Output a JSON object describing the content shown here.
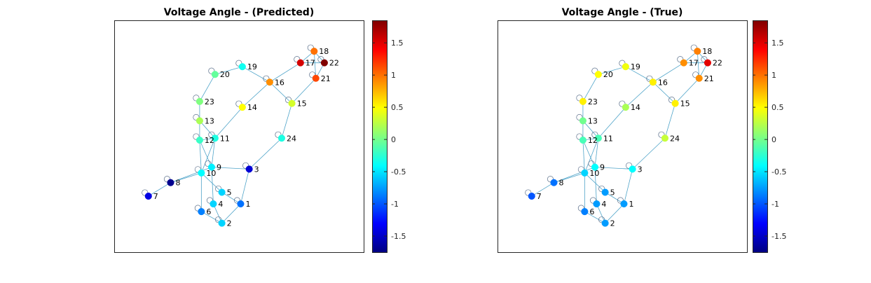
{
  "chart_data": {
    "type": "scatter",
    "graph": {
      "nodes": [
        {
          "id": "1",
          "x": 1.8,
          "y": 0.85
        },
        {
          "id": "2",
          "x": 1.25,
          "y": 0.35
        },
        {
          "id": "3",
          "x": 2.05,
          "y": 1.75
        },
        {
          "id": "4",
          "x": 1.0,
          "y": 0.85
        },
        {
          "id": "5",
          "x": 1.25,
          "y": 1.15
        },
        {
          "id": "6",
          "x": 0.65,
          "y": 0.65
        },
        {
          "id": "7",
          "x": -0.9,
          "y": 1.05
        },
        {
          "id": "8",
          "x": -0.25,
          "y": 1.4
        },
        {
          "id": "9",
          "x": 0.95,
          "y": 1.8
        },
        {
          "id": "10",
          "x": 0.65,
          "y": 1.65
        },
        {
          "id": "11",
          "x": 1.05,
          "y": 2.55
        },
        {
          "id": "12",
          "x": 0.6,
          "y": 2.5
        },
        {
          "id": "13",
          "x": 0.6,
          "y": 3.0
        },
        {
          "id": "14",
          "x": 1.85,
          "y": 3.35
        },
        {
          "id": "15",
          "x": 3.3,
          "y": 3.45
        },
        {
          "id": "16",
          "x": 2.65,
          "y": 4.0
        },
        {
          "id": "17",
          "x": 3.55,
          "y": 4.5
        },
        {
          "id": "18",
          "x": 3.95,
          "y": 4.8
        },
        {
          "id": "19",
          "x": 1.85,
          "y": 4.4
        },
        {
          "id": "20",
          "x": 1.05,
          "y": 4.2
        },
        {
          "id": "21",
          "x": 4.0,
          "y": 4.1
        },
        {
          "id": "22",
          "x": 4.25,
          "y": 4.5
        },
        {
          "id": "23",
          "x": 0.6,
          "y": 3.5
        },
        {
          "id": "24",
          "x": 3.0,
          "y": 2.55
        }
      ],
      "edges": [
        [
          "1",
          "2"
        ],
        [
          "1",
          "3"
        ],
        [
          "1",
          "5"
        ],
        [
          "2",
          "4"
        ],
        [
          "2",
          "6"
        ],
        [
          "4",
          "9"
        ],
        [
          "5",
          "10"
        ],
        [
          "3",
          "9"
        ],
        [
          "6",
          "10"
        ],
        [
          "7",
          "8"
        ],
        [
          "8",
          "9"
        ],
        [
          "8",
          "10"
        ],
        [
          "9",
          "11"
        ],
        [
          "9",
          "12"
        ],
        [
          "10",
          "11"
        ],
        [
          "10",
          "12"
        ],
        [
          "11",
          "13"
        ],
        [
          "11",
          "14"
        ],
        [
          "12",
          "13"
        ],
        [
          "13",
          "23"
        ],
        [
          "14",
          "16"
        ],
        [
          "15",
          "16"
        ],
        [
          "15",
          "21"
        ],
        [
          "15",
          "24"
        ],
        [
          "16",
          "17"
        ],
        [
          "16",
          "19"
        ],
        [
          "17",
          "18"
        ],
        [
          "17",
          "22"
        ],
        [
          "18",
          "21"
        ],
        [
          "18",
          "22"
        ],
        [
          "19",
          "20"
        ],
        [
          "20",
          "23"
        ],
        [
          "21",
          "22"
        ],
        [
          "3",
          "24"
        ],
        [
          "11",
          "12"
        ]
      ]
    },
    "colorbar": {
      "colormap": "jet",
      "limits": [
        -1.75,
        1.85
      ],
      "ticks": [
        1.5,
        1,
        0.5,
        0,
        -0.5,
        -1,
        -1.5
      ],
      "tick_labels": [
        "1.5",
        "1",
        "0.5",
        "0",
        "-0.5",
        "-1",
        "-1.5"
      ]
    },
    "panels": [
      {
        "title": "Voltage Angle - (Predicted)",
        "values": {
          "1": -0.9,
          "2": -0.55,
          "3": -1.45,
          "4": -0.55,
          "5": -0.55,
          "6": -0.85,
          "7": -1.4,
          "8": -1.7,
          "9": -0.45,
          "10": -0.4,
          "11": -0.3,
          "12": -0.2,
          "13": 0.2,
          "14": 0.5,
          "15": 0.35,
          "16": 0.9,
          "17": 1.55,
          "18": 1.0,
          "19": -0.35,
          "20": -0.05,
          "21": 1.15,
          "22": 1.85,
          "23": 0.05,
          "24": -0.3
        }
      },
      {
        "title": "Voltage Angle - (True)",
        "values": {
          "1": -0.75,
          "2": -0.75,
          "3": -0.4,
          "4": -0.75,
          "5": -0.75,
          "6": -0.85,
          "7": -1.0,
          "8": -0.9,
          "9": -0.4,
          "10": -0.55,
          "11": -0.15,
          "12": -0.15,
          "13": 0.0,
          "14": 0.2,
          "15": 0.55,
          "16": 0.55,
          "17": 0.9,
          "18": 0.95,
          "19": 0.45,
          "20": 0.5,
          "21": 0.9,
          "22": 1.5,
          "23": 0.55,
          "24": 0.3
        }
      }
    ]
  }
}
